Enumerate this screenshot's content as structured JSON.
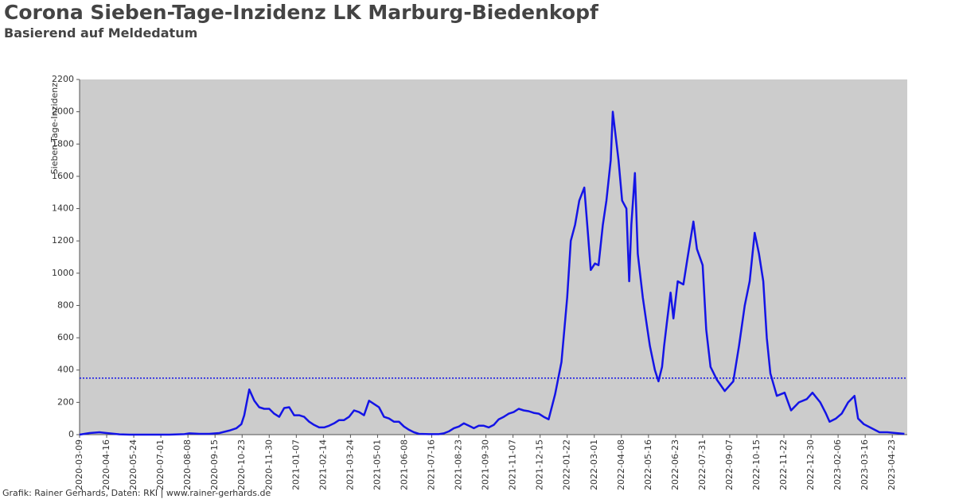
{
  "chart_data": {
    "type": "line",
    "title": "Corona Sieben-Tage-Inzidenz LK Marburg-Biedenkopf",
    "subtitle": "Basierend auf Meldedatum",
    "y_label": "Sieben-Tage-Inzidenz",
    "footer": "Grafik: Rainer Gerhards, Daten: RKI | www.rainer-gerhards.de",
    "x": [
      "2020-03-09",
      "2020-03-23",
      "2020-04-06",
      "2020-04-20",
      "2020-05-04",
      "2020-05-18",
      "2020-06-15",
      "2020-07-13",
      "2020-08-03",
      "2020-08-10",
      "2020-08-24",
      "2020-09-07",
      "2020-09-21",
      "2020-10-05",
      "2020-10-15",
      "2020-10-22",
      "2020-10-26",
      "2020-11-02",
      "2020-11-09",
      "2020-11-16",
      "2020-11-23",
      "2020-11-30",
      "2020-12-07",
      "2020-12-14",
      "2020-12-21",
      "2020-12-28",
      "2021-01-04",
      "2021-01-11",
      "2021-01-18",
      "2021-01-25",
      "2021-02-01",
      "2021-02-08",
      "2021-02-15",
      "2021-02-22",
      "2021-03-01",
      "2021-03-08",
      "2021-03-15",
      "2021-03-22",
      "2021-03-29",
      "2021-04-05",
      "2021-04-12",
      "2021-04-19",
      "2021-04-26",
      "2021-05-03",
      "2021-05-10",
      "2021-05-17",
      "2021-05-24",
      "2021-05-31",
      "2021-06-07",
      "2021-06-14",
      "2021-06-21",
      "2021-06-28",
      "2021-07-12",
      "2021-07-26",
      "2021-08-02",
      "2021-08-09",
      "2021-08-16",
      "2021-08-23",
      "2021-08-30",
      "2021-09-06",
      "2021-09-13",
      "2021-09-20",
      "2021-09-27",
      "2021-10-04",
      "2021-10-11",
      "2021-10-18",
      "2021-10-25",
      "2021-11-01",
      "2021-11-08",
      "2021-11-15",
      "2021-11-22",
      "2021-11-29",
      "2021-12-06",
      "2021-12-13",
      "2021-12-20",
      "2021-12-27",
      "2022-01-05",
      "2022-01-14",
      "2022-01-22",
      "2022-01-27",
      "2022-02-02",
      "2022-02-08",
      "2022-02-15",
      "2022-02-20",
      "2022-02-24",
      "2022-03-02",
      "2022-03-07",
      "2022-03-13",
      "2022-03-18",
      "2022-03-24",
      "2022-03-27",
      "2022-03-31",
      "2022-04-04",
      "2022-04-09",
      "2022-04-15",
      "2022-04-19",
      "2022-04-22",
      "2022-04-27",
      "2022-05-01",
      "2022-05-08",
      "2022-05-13",
      "2022-05-18",
      "2022-05-25",
      "2022-05-30",
      "2022-06-04",
      "2022-06-07",
      "2022-06-11",
      "2022-06-16",
      "2022-06-20",
      "2022-06-26",
      "2022-07-04",
      "2022-07-10",
      "2022-07-18",
      "2022-07-23",
      "2022-07-31",
      "2022-08-05",
      "2022-08-11",
      "2022-08-20",
      "2022-08-31",
      "2022-09-12",
      "2022-09-20",
      "2022-09-28",
      "2022-10-05",
      "2022-10-12",
      "2022-10-18",
      "2022-10-24",
      "2022-10-29",
      "2022-11-03",
      "2022-11-12",
      "2022-11-23",
      "2022-12-02",
      "2022-12-13",
      "2022-12-24",
      "2023-01-01",
      "2023-01-12",
      "2023-01-20",
      "2023-01-25",
      "2023-02-03",
      "2023-02-11",
      "2023-02-20",
      "2023-03-01",
      "2023-03-06",
      "2023-03-14",
      "2023-03-25",
      "2023-04-05",
      "2023-04-16",
      "2023-04-28",
      "2023-05-10"
    ],
    "series": [
      {
        "name": "Sieben-Tage-Inzidenz",
        "color": "#1414e6",
        "values": [
          0,
          10,
          15,
          8,
          2,
          0,
          0,
          0,
          3,
          8,
          5,
          5,
          10,
          25,
          40,
          65,
          120,
          280,
          210,
          170,
          160,
          160,
          130,
          110,
          165,
          170,
          120,
          120,
          110,
          80,
          60,
          45,
          45,
          55,
          70,
          90,
          90,
          110,
          150,
          140,
          120,
          210,
          190,
          170,
          110,
          100,
          80,
          80,
          50,
          30,
          15,
          5,
          3,
          3,
          8,
          20,
          40,
          50,
          70,
          55,
          40,
          55,
          55,
          45,
          60,
          95,
          110,
          130,
          140,
          160,
          150,
          145,
          135,
          130,
          110,
          95,
          250,
          450,
          850,
          1200,
          1300,
          1450,
          1530,
          1250,
          1020,
          1060,
          1050,
          1300,
          1450,
          1700,
          2000,
          1850,
          1700,
          1450,
          1400,
          950,
          1300,
          1620,
          1120,
          850,
          700,
          550,
          400,
          330,
          420,
          550,
          700,
          880,
          720,
          950,
          930,
          1100,
          1320,
          1150,
          1050,
          650,
          420,
          340,
          270,
          330,
          550,
          800,
          950,
          1250,
          1120,
          950,
          600,
          380,
          240,
          260,
          150,
          200,
          220,
          260,
          200,
          130,
          80,
          100,
          130,
          200,
          240,
          100,
          65,
          40,
          15,
          15,
          10,
          5
        ]
      }
    ],
    "xlim": [
      "2020-03-09",
      "2023-05-14"
    ],
    "xticks": [
      "2020-03-09",
      "2020-04-16",
      "2020-05-24",
      "2020-07-01",
      "2020-08-08",
      "2020-09-15",
      "2020-10-23",
      "2020-11-30",
      "2021-01-07",
      "2021-02-14",
      "2021-03-24",
      "2021-05-01",
      "2021-06-08",
      "2021-07-16",
      "2021-08-23",
      "2021-09-30",
      "2021-11-07",
      "2021-12-15",
      "2022-01-22",
      "2022-03-01",
      "2022-04-08",
      "2022-05-16",
      "2022-06-23",
      "2022-07-31",
      "2022-09-07",
      "2022-10-15",
      "2022-11-22",
      "2022-12-30",
      "2023-02-06",
      "2023-03-16",
      "2023-04-23"
    ],
    "ylim": [
      0,
      2200
    ],
    "yticks": [
      0,
      200,
      400,
      600,
      800,
      1000,
      1200,
      1400,
      1600,
      1800,
      2000,
      2200
    ],
    "reference_line": {
      "value": 350,
      "color": "#1414e6"
    },
    "plot_background": "#cccccc"
  }
}
